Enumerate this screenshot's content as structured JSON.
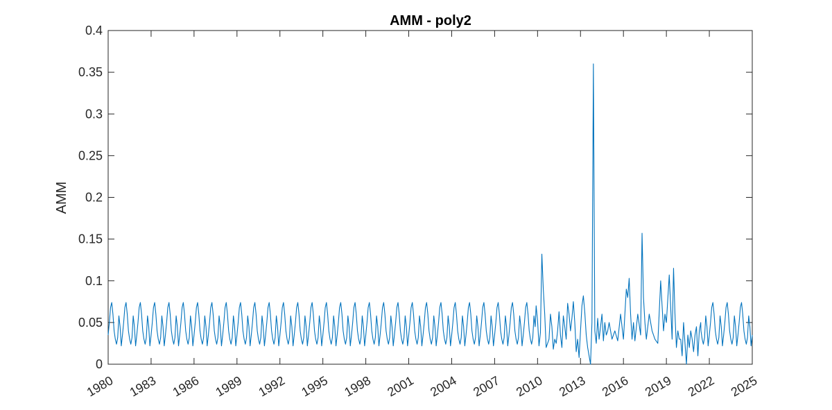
{
  "chart_data": {
    "type": "line",
    "title": "AMM - poly2",
    "xlabel": "",
    "ylabel": "AMM",
    "xlim": [
      1980,
      2025
    ],
    "ylim": [
      0,
      0.4
    ],
    "xticks": [
      "1980",
      "1983",
      "1986",
      "1989",
      "1992",
      "1995",
      "1998",
      "2001",
      "2004",
      "2007",
      "2010",
      "2013",
      "2016",
      "2019",
      "2022",
      "2025"
    ],
    "yticks": [
      "0",
      "0.05",
      "0.1",
      "0.15",
      "0.2",
      "0.25",
      "0.3",
      "0.35",
      "0.4"
    ],
    "grid": false,
    "series": [
      {
        "color": "#0072BD",
        "seasonal_cycle_1980_2009_and_2021_2025": [
          0.035,
          0.05,
          0.068,
          0.074,
          0.06,
          0.04,
          0.03,
          0.024,
          0.032,
          0.058,
          0.045,
          0.022
        ],
        "x": [
          2009.9,
          2010.0,
          2010.1,
          2010.2,
          2010.3,
          2010.4,
          2010.5,
          2010.6,
          2010.7,
          2010.8,
          2010.9,
          2011.0,
          2011.1,
          2011.2,
          2011.3,
          2011.4,
          2011.5,
          2011.6,
          2011.7,
          2011.8,
          2011.9,
          2012.0,
          2012.1,
          2012.2,
          2012.3,
          2012.4,
          2012.5,
          2012.6,
          2012.7,
          2012.8,
          2012.9,
          2013.0,
          2013.1,
          2013.2,
          2013.3,
          2013.4,
          2013.5,
          2013.6,
          2013.7,
          2013.8,
          2013.9,
          2014.0,
          2014.1,
          2014.2,
          2014.3,
          2014.4,
          2014.5,
          2014.6,
          2014.7,
          2014.8,
          2014.9,
          2015.0,
          2015.2,
          2015.4,
          2015.6,
          2015.8,
          2016.0,
          2016.2,
          2016.3,
          2016.4,
          2016.5,
          2016.6,
          2016.7,
          2016.8,
          2017.0,
          2017.2,
          2017.3,
          2017.4,
          2017.5,
          2017.6,
          2017.7,
          2017.8,
          2018.0,
          2018.2,
          2018.4,
          2018.6,
          2018.8,
          2018.9,
          2019.0,
          2019.2,
          2019.4,
          2019.5,
          2019.6,
          2019.7,
          2019.8,
          2019.9,
          2020.0,
          2020.1,
          2020.2,
          2020.3,
          2020.4,
          2020.5,
          2020.6,
          2020.7,
          2020.8,
          2020.9,
          2021.0,
          2021.1,
          2021.2,
          2021.3,
          2021.4
        ],
        "y": [
          0.07,
          0.052,
          0.022,
          0.038,
          0.132,
          0.09,
          0.06,
          0.02,
          0.025,
          0.03,
          0.06,
          0.045,
          0.018,
          0.03,
          0.025,
          0.04,
          0.063,
          0.035,
          0.02,
          0.058,
          0.045,
          0.03,
          0.073,
          0.06,
          0.04,
          0.055,
          0.075,
          0.05,
          0.015,
          0.03,
          0.008,
          0.04,
          0.07,
          0.082,
          0.062,
          0.035,
          0.02,
          0.01,
          0.0,
          0.05,
          0.36,
          0.04,
          0.025,
          0.055,
          0.03,
          0.045,
          0.06,
          0.028,
          0.05,
          0.035,
          0.04,
          0.05,
          0.03,
          0.04,
          0.028,
          0.06,
          0.03,
          0.09,
          0.08,
          0.103,
          0.06,
          0.03,
          0.05,
          0.028,
          0.06,
          0.035,
          0.157,
          0.08,
          0.05,
          0.03,
          0.045,
          0.06,
          0.04,
          0.03,
          0.025,
          0.1,
          0.04,
          0.06,
          0.05,
          0.107,
          0.03,
          0.115,
          0.06,
          0.02,
          0.04,
          0.03,
          0.03,
          0.01,
          0.05,
          0.025,
          0.0,
          0.035,
          0.02,
          0.04,
          0.03,
          0.015,
          0.035,
          0.045,
          0.01,
          0.04,
          0.05
        ]
      }
    ]
  }
}
